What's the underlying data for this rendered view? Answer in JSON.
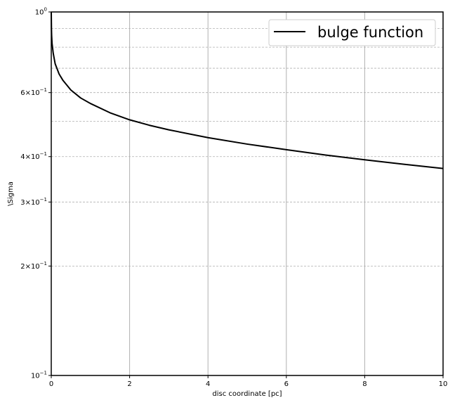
{
  "chart_data": {
    "type": "line",
    "title": "",
    "xlabel": "disc coordinate [pc]",
    "ylabel": "\\Sigma",
    "xlim": [
      0,
      10
    ],
    "ylim": [
      0.1,
      1.0
    ],
    "yscale": "log",
    "grid": true,
    "legend_position": "top-right",
    "x_ticks": [
      0,
      2,
      4,
      6,
      8,
      10
    ],
    "x_tick_labels": [
      "0",
      "2",
      "4",
      "6",
      "8",
      "10"
    ],
    "y_ticks_labeled": [
      {
        "value": 1.0,
        "mantissa": "",
        "exponent": "0"
      },
      {
        "value": 0.6,
        "mantissa": "6",
        "exponent": "-1"
      },
      {
        "value": 0.4,
        "mantissa": "4",
        "exponent": "-1"
      },
      {
        "value": 0.3,
        "mantissa": "3",
        "exponent": "-1"
      },
      {
        "value": 0.2,
        "mantissa": "2",
        "exponent": "-1"
      },
      {
        "value": 0.1,
        "mantissa": "",
        "exponent": "-1"
      }
    ],
    "y_minor_grid": [
      0.9,
      0.8,
      0.7,
      0.5
    ],
    "series": [
      {
        "name": "bulge function",
        "color": "#000000",
        "x": [
          0,
          0.005,
          0.01,
          0.02,
          0.05,
          0.1,
          0.2,
          0.3,
          0.5,
          0.75,
          1,
          1.5,
          2,
          2.5,
          3,
          4,
          5,
          6,
          7,
          8,
          9,
          10
        ],
        "y": [
          1.0,
          0.9,
          0.86,
          0.82,
          0.77,
          0.72,
          0.675,
          0.648,
          0.61,
          0.58,
          0.56,
          0.528,
          0.505,
          0.488,
          0.474,
          0.451,
          0.433,
          0.418,
          0.404,
          0.392,
          0.381,
          0.371
        ]
      }
    ]
  }
}
